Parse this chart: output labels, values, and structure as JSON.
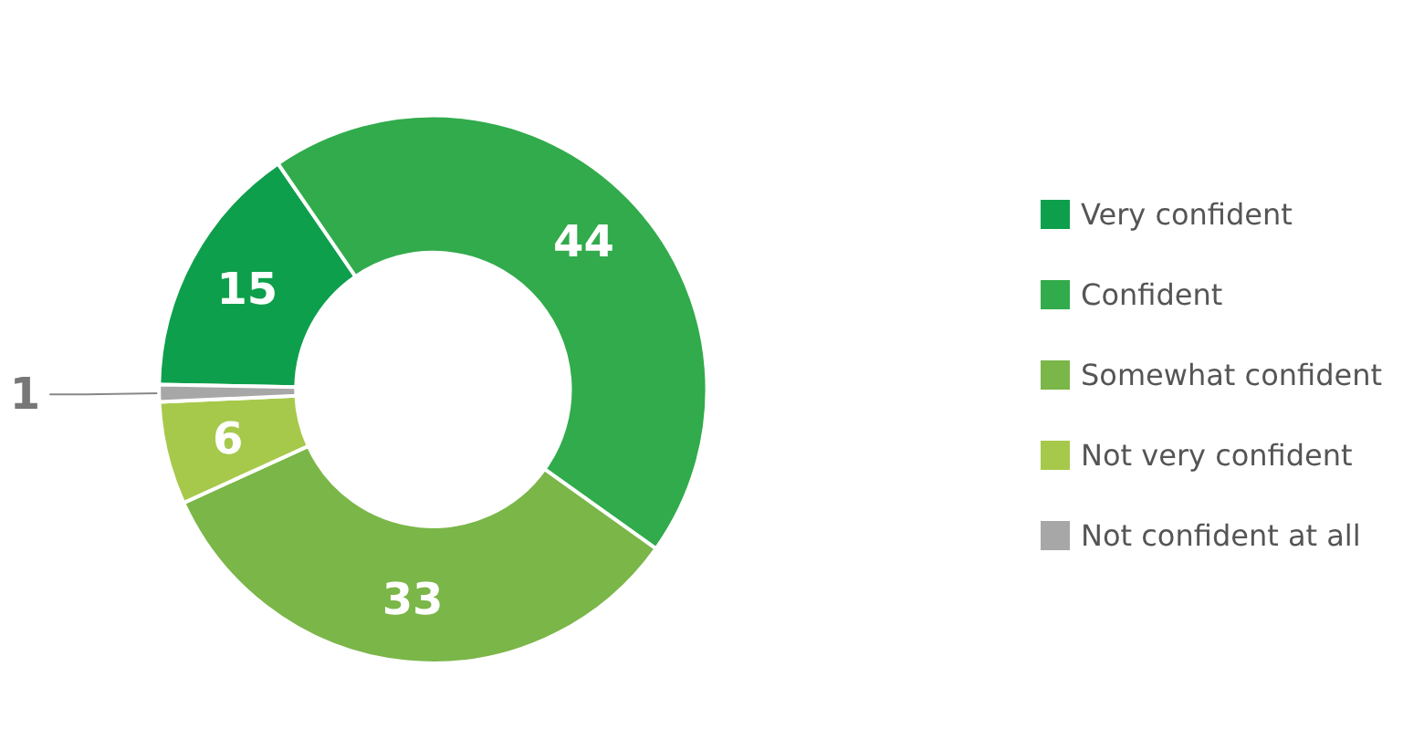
{
  "chart_data": {
    "type": "donut",
    "categories": [
      "Very confident",
      "Confident",
      "Somewhat confident",
      "Not very confident",
      "Not confident at all"
    ],
    "values": [
      15,
      44,
      33,
      6,
      1
    ],
    "colors": [
      "#0e9f4c",
      "#31ab4b",
      "#7ab648",
      "#a6c94b",
      "#a7a7a7"
    ],
    "data_labels": true,
    "legend": "right"
  }
}
